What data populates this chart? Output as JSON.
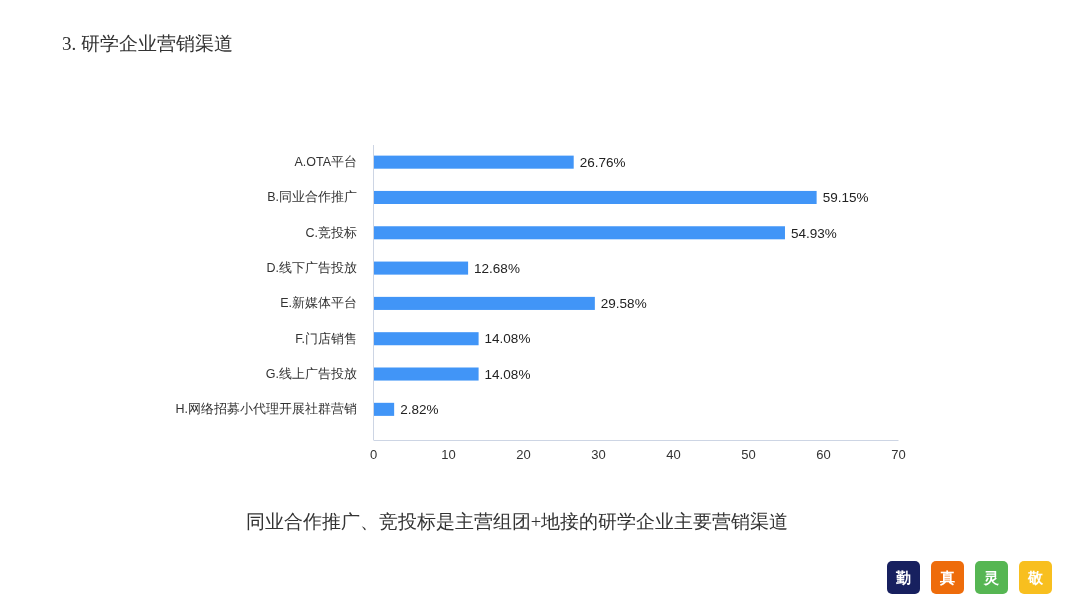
{
  "chart_data": {
    "type": "bar",
    "orientation": "horizontal",
    "title": "3. 研学企业营销渠道",
    "categories": [
      "A.OTA平台",
      "B.同业合作推广",
      "C.竞投标",
      "D.线下广告投放",
      "E.新媒体平台",
      "F.门店销售",
      "G.线上广告投放",
      "H.网络招募小代理开展社群营销"
    ],
    "values": [
      26.76,
      59.15,
      54.93,
      12.68,
      29.58,
      14.08,
      14.08,
      2.82
    ],
    "value_labels": [
      "26.76%",
      "59.15%",
      "54.93%",
      "12.68%",
      "29.58%",
      "14.08%",
      "14.08%",
      "2.82%"
    ],
    "color": "#4195f7",
    "xlim": [
      0,
      70
    ],
    "xticks": [
      0,
      10,
      20,
      30,
      40,
      50,
      60,
      70
    ],
    "annotations": [
      "同业合作推广、竞投标是主营组团+地接的研学企业主要营销渠道",
      "勤",
      "真",
      "灵",
      "敬"
    ]
  }
}
